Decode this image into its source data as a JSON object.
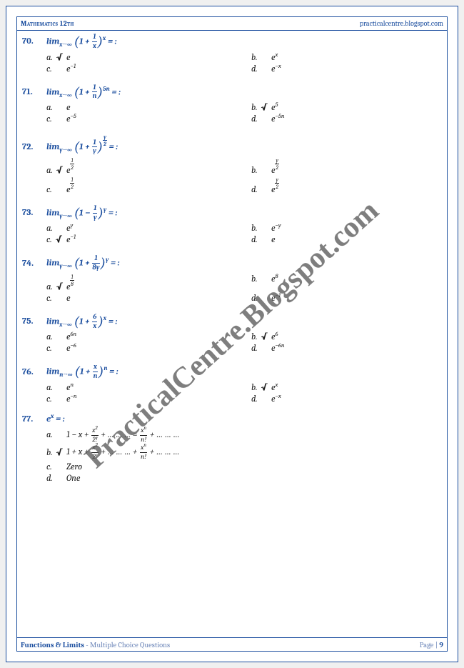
{
  "header": {
    "left": "Mathematics 12th",
    "right": "practicalcentre.blogspot.com"
  },
  "footer": {
    "left_bold": "Functions & Limits",
    "left_rest": " - Multiple Choice Questions",
    "page_label": "Page | ",
    "page_num": "9"
  },
  "watermark": "PracticalCentre.Blogspot.com",
  "colors": {
    "brand": "#1a4d9e",
    "text": "#1a1a1a",
    "muted": "#6b85b8",
    "bg": "#ffffff"
  },
  "questions": [
    {
      "num": "70.",
      "stem_html": "lim<sub>x→∞</sub> <span class='paren-l'>(</span>1 + <span class='frac'><span class='fn'>1</span><span class='fd'>x</span></span><span class='paren-r'>)</span><sup>x</sup> = :",
      "opts": [
        {
          "l": "a. √",
          "v": "e",
          "correct": true
        },
        {
          "l": "b.",
          "v": "e<sup>x</sup>"
        },
        {
          "l": "c.",
          "v": "e<sup>−1</sup>"
        },
        {
          "l": "d.",
          "v": "e<sup>−x</sup>"
        }
      ]
    },
    {
      "num": "71.",
      "stem_html": "lim<sub>x→∞</sub> <span class='paren-l'>(</span>1 + <span class='frac'><span class='fn'>1</span><span class='fd'>n</span></span><span class='paren-r'>)</span><sup>5n</sup> = :",
      "opts": [
        {
          "l": "a.",
          "v": "e"
        },
        {
          "l": "b. √",
          "v": "e<sup>5</sup>",
          "correct": true
        },
        {
          "l": "c.",
          "v": "e<sup>−5</sup>"
        },
        {
          "l": "d.",
          "v": "e<sup>−5n</sup>"
        }
      ]
    },
    {
      "num": "72.",
      "stem_html": "lim<sub>y→∞</sub> <span class='paren-l'>(</span>1 + <span class='frac'><span class='fn'>1</span><span class='fd'>y</span></span><span class='paren-r'>)</span><span class='supfrac'><span class='fn'>y</span><span class='fd'>2</span></span> = :",
      "opts": [
        {
          "l": "a. √",
          "v": "e<span class='supfrac'><span class='fn'>1</span><span class='fd'>2</span></span>",
          "correct": true
        },
        {
          "l": "b.",
          "v": "e<span class='supfrac'><span class='fn'>y</span><span class='fd'>2</span></span>"
        },
        {
          "l": "c.",
          "v": "e<span class='supfrac'><span class='fn'>1</span><span class='fd'>2</span></span>"
        },
        {
          "l": "d.",
          "v": "e<span class='supfrac'><span class='fn'>y</span><span class='fd'>2</span></span>"
        }
      ]
    },
    {
      "num": "73.",
      "stem_html": "lim<sub>y→∞</sub> <span class='paren-l'>(</span>1 − <span class='frac'><span class='fn'>1</span><span class='fd'>y</span></span><span class='paren-r'>)</span><sup>y</sup> = :",
      "opts": [
        {
          "l": "a.",
          "v": "e<sup>y</sup>"
        },
        {
          "l": "b.",
          "v": "e<sup>−y</sup>"
        },
        {
          "l": "c. √",
          "v": "e<sup>−1</sup>",
          "correct": true
        },
        {
          "l": "d.",
          "v": "e"
        }
      ]
    },
    {
      "num": "74.",
      "stem_html": "lim<sub>y→∞</sub> <span class='paren-l'>(</span>1 + <span class='frac'><span class='fn'>1</span><span class='fd'>8y</span></span><span class='paren-r'>)</span><sup>y</sup> = :",
      "opts": [
        {
          "l": "a. √",
          "v": "e<span class='supfrac'><span class='fn'>1</span><span class='fd'>8</span></span>",
          "correct": true
        },
        {
          "l": "b.",
          "v": "e<sup>8</sup>"
        },
        {
          "l": "c.",
          "v": "e"
        },
        {
          "l": "d.",
          "v": "e<sup>−1</sup>"
        }
      ]
    },
    {
      "num": "75.",
      "stem_html": "lim<sub>x→∞</sub> <span class='paren-l'>(</span>1 + <span class='frac'><span class='fn'>6</span><span class='fd'>x</span></span><span class='paren-r'>)</span><sup>x</sup> = :",
      "opts": [
        {
          "l": "a.",
          "v": "e<sup>6n</sup>"
        },
        {
          "l": "b. √",
          "v": "e<sup>6</sup>",
          "correct": true
        },
        {
          "l": "c.",
          "v": "e<sup>−6</sup>"
        },
        {
          "l": "d.",
          "v": "e<sup>−6n</sup>"
        }
      ]
    },
    {
      "num": "76.",
      "stem_html": "lim<sub>n→∞</sub> <span class='paren-l'>(</span>1 + <span class='frac'><span class='fn'>x</span><span class='fd'>n</span></span><span class='paren-r'>)</span><sup>n</sup> = :",
      "opts": [
        {
          "l": "a.",
          "v": "e<sup>n</sup>"
        },
        {
          "l": "b. √",
          "v": "e<sup>x</sup>",
          "correct": true
        },
        {
          "l": "c.",
          "v": "e<sup>−n</sup>"
        },
        {
          "l": "d.",
          "v": "e<sup>−x</sup>"
        }
      ]
    },
    {
      "num": "77.",
      "stem_html": "e<sup>x</sup> = :",
      "opts_stacked": true,
      "opts": [
        {
          "l": "a.",
          "v": "1 − x + <span class='frac'><span class='fn'>x<sup>2</sup></span><span class='fd'>2!</span></span> + … … … = <span class='frac'><span class='fn'>x<sup>n</sup></span><span class='fd'>n!</span></span> + … … …"
        },
        {
          "l": "b. √",
          "v": "1 + x + <span class='frac'><span class='fn'>x<sup>2</sup></span><span class='fd'>2!</span></span> + … … … + <span class='frac'><span class='fn'>x<sup>n</sup></span><span class='fd'>n!</span></span> + … … …",
          "correct": true
        },
        {
          "l": "c.",
          "v": "Zero"
        },
        {
          "l": "d.",
          "v": "One"
        }
      ]
    }
  ]
}
